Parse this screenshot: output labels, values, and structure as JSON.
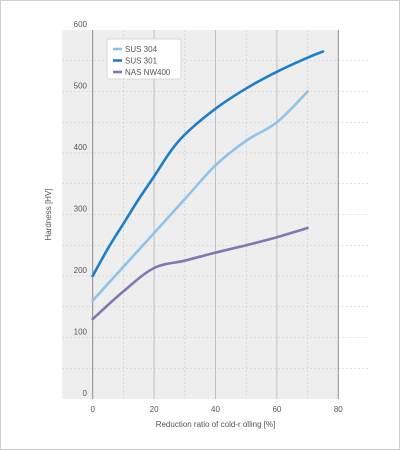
{
  "chart_data": {
    "type": "line",
    "title": "",
    "xlabel": "Reduction ratio of cold-r olling [%]",
    "ylabel": "Hardness [HV]",
    "xlim": [
      -10,
      90
    ],
    "ylim": [
      0,
      600
    ],
    "xticks": [
      0,
      20,
      40,
      60,
      80
    ],
    "yticks": [
      0,
      100,
      200,
      300,
      400,
      500,
      600
    ],
    "grid": true,
    "legend_position": "top-left",
    "series": [
      {
        "name": "SUS 304",
        "color": "#8fc3ea",
        "x": [
          0,
          10,
          20,
          30,
          40,
          50,
          60,
          70
        ],
        "y": [
          160,
          215,
          270,
          325,
          380,
          420,
          450,
          500
        ]
      },
      {
        "name": "SUS 301",
        "color": "#1e7fc6",
        "x": [
          0,
          5,
          10,
          15,
          20,
          25,
          30,
          40,
          50,
          60,
          70,
          75
        ],
        "y": [
          200,
          245,
          285,
          325,
          362,
          400,
          430,
          472,
          505,
          532,
          555,
          565
        ]
      },
      {
        "name": "NAS NW400",
        "color": "#8377b3",
        "x": [
          0,
          10,
          20,
          30,
          40,
          50,
          60,
          70
        ],
        "y": [
          130,
          175,
          213,
          225,
          238,
          250,
          263,
          278
        ]
      }
    ]
  }
}
